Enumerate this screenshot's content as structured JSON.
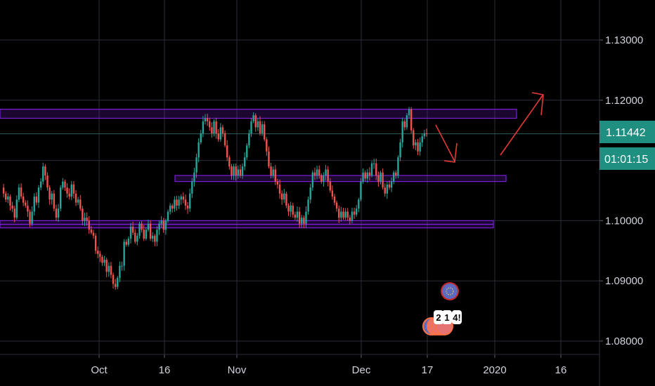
{
  "chart_data": {
    "type": "candlestick",
    "price_axis": {
      "ticks": [
        "1.13000",
        "1.12000",
        "1.10000",
        "1.09000",
        "1.08000"
      ],
      "range": [
        1.0795,
        1.1355
      ]
    },
    "time_axis": {
      "ticks": [
        "Oct",
        "16",
        "Nov",
        "Dec",
        "17",
        "2020",
        "16"
      ]
    },
    "last_price": "1.11442",
    "countdown": "01:01:15",
    "colors": {
      "up": "#26a69a",
      "down": "#ef5350",
      "zone": "#7b1fd8",
      "arrow": "#e53935",
      "price_tag": "#1e8f80",
      "event": "#5c6bc0"
    },
    "series": [
      1.1055,
      1.1045,
      1.1035,
      1.104,
      1.1025,
      1.102,
      1.1005,
      1.1035,
      1.1055,
      1.104,
      1.103,
      1.1025,
      1.1015,
      1.0995,
      1.1015,
      1.104,
      1.103,
      1.1055,
      1.1065,
      1.109,
      1.1075,
      1.1055,
      1.1035,
      1.1045,
      1.102,
      1.1005,
      1.102,
      1.1055,
      1.1065,
      1.1055,
      1.1045,
      1.104,
      1.106,
      1.1045,
      1.103,
      1.1035,
      1.102,
      1.1,
      1.1005,
      1.1,
      1.0985,
      1.098,
      1.0975,
      1.095,
      1.0945,
      1.094,
      1.093,
      1.0935,
      1.0915,
      1.0925,
      1.091,
      1.0895,
      1.089,
      1.0905,
      1.0925,
      1.0925,
      1.0965,
      1.096,
      1.097,
      1.099,
      1.098,
      1.0965,
      1.0975,
      1.0995,
      1.0985,
      1.097,
      1.0985,
      1.0995,
      1.097,
      1.0975,
      1.0965,
      1.0985,
      1.0995,
      1.1,
      1.0985,
      1.1,
      1.1015,
      1.1025,
      1.102,
      1.1035,
      1.1025,
      1.1035,
      1.104,
      1.1035,
      1.1025,
      1.102,
      1.1045,
      1.1065,
      1.108,
      1.1105,
      1.113,
      1.1145,
      1.1165,
      1.117,
      1.1165,
      1.1155,
      1.1145,
      1.1165,
      1.1145,
      1.1135,
      1.1155,
      1.1145,
      1.1125,
      1.1105,
      1.109,
      1.1075,
      1.109,
      1.1075,
      1.1085,
      1.1075,
      1.109,
      1.1105,
      1.1125,
      1.1145,
      1.1165,
      1.1175,
      1.1155,
      1.1165,
      1.1145,
      1.116,
      1.1135,
      1.1115,
      1.109,
      1.1075,
      1.1085,
      1.1065,
      1.106,
      1.1045,
      1.1035,
      1.1045,
      1.1025,
      1.1015,
      1.1025,
      1.101,
      1.1005,
      1.1015,
      1.0995,
      1.1005,
      1.0995,
      1.1015,
      1.1035,
      1.1055,
      1.108,
      1.1075,
      1.1085,
      1.1075,
      1.1065,
      1.1075,
      1.1085,
      1.1065,
      1.105,
      1.104,
      1.103,
      1.102,
      1.1005,
      1.1015,
      1.1005,
      1.1015,
      1.1005,
      1.1,
      1.1015,
      1.101,
      1.102,
      1.1035,
      1.1065,
      1.108,
      1.107,
      1.108,
      1.1075,
      1.1095,
      1.1095,
      1.1075,
      1.1065,
      1.108,
      1.1055,
      1.1045,
      1.106,
      1.1055,
      1.1065,
      1.108,
      1.1075,
      1.1105,
      1.113,
      1.1165,
      1.1155,
      1.1175,
      1.1185,
      1.115,
      1.1125,
      1.113,
      1.1115,
      1.113,
      1.114,
      1.1145,
      1.1144
    ],
    "zones": [
      {
        "top": 1.1185,
        "bottom": 1.117
      },
      {
        "top": 1.1075,
        "bottom": 1.1065
      },
      {
        "top": 1.1,
        "bottom": 1.0994
      },
      {
        "top": 1.0994,
        "bottom": 1.0988
      }
    ],
    "event_badges": [
      "2",
      "1",
      "4!"
    ]
  }
}
